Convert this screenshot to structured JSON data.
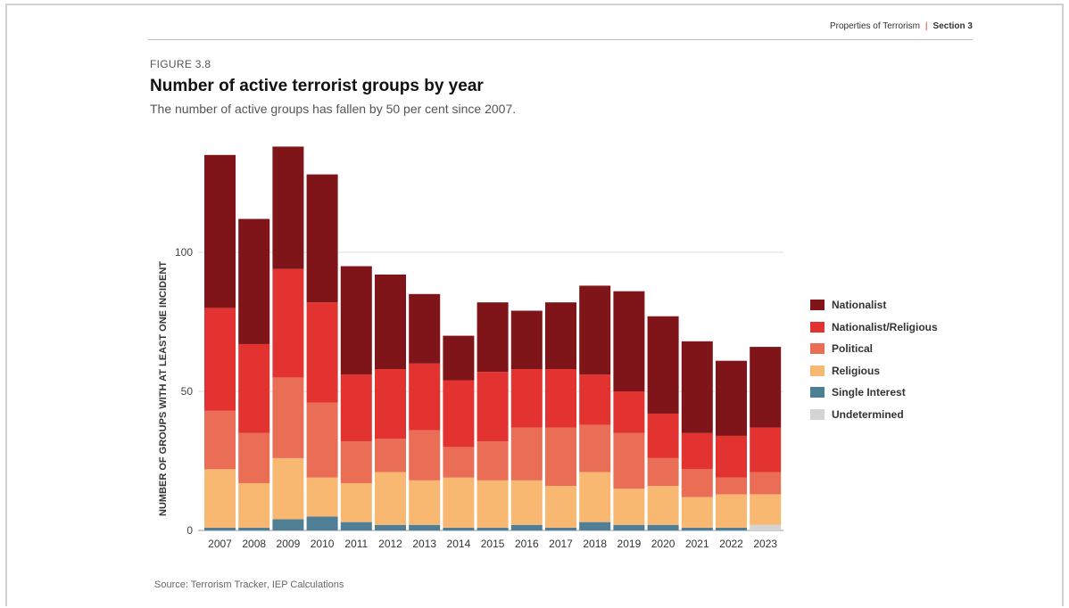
{
  "header": {
    "left": "Properties of Terrorism",
    "separator": "|",
    "right": "Section 3"
  },
  "figure_label": "FIGURE 3.8",
  "source": "Source: Terrorism Tracker, IEP Calculations",
  "chart_data": {
    "type": "bar",
    "stacked": true,
    "title": "Number of active terrorist groups by year",
    "subtitle": "The number of active groups has fallen by 50 per cent since 2007.",
    "ylabel": "NUMBER OF GROUPS WITH AT LEAST ONE INCIDENT",
    "xlabel": "",
    "ylim": [
      0,
      150
    ],
    "yticks": [
      0,
      50,
      100
    ],
    "grid": true,
    "legend_position": "right",
    "categories": [
      "2007",
      "2008",
      "2009",
      "2010",
      "2011",
      "2012",
      "2013",
      "2014",
      "2015",
      "2016",
      "2017",
      "2018",
      "2019",
      "2020",
      "2021",
      "2022",
      "2023"
    ],
    "series": [
      {
        "name": "Undetermined",
        "color": "#d4d4d4",
        "values": [
          0,
          0,
          0,
          0,
          0,
          0,
          0,
          0,
          0,
          0,
          0,
          0,
          0,
          0,
          0,
          0,
          2
        ]
      },
      {
        "name": "Single Interest",
        "color": "#4e7f95",
        "values": [
          1,
          1,
          4,
          5,
          3,
          2,
          2,
          1,
          1,
          2,
          1,
          3,
          2,
          2,
          1,
          1,
          0
        ]
      },
      {
        "name": "Religious",
        "color": "#f8b872",
        "values": [
          21,
          16,
          22,
          14,
          14,
          19,
          16,
          18,
          17,
          16,
          15,
          18,
          13,
          14,
          11,
          12,
          11
        ]
      },
      {
        "name": "Political",
        "color": "#ea6d56",
        "values": [
          21,
          18,
          29,
          27,
          15,
          12,
          18,
          11,
          14,
          19,
          21,
          17,
          20,
          10,
          10,
          6,
          8
        ]
      },
      {
        "name": "Nationalist/Religious",
        "color": "#e23331",
        "values": [
          37,
          32,
          39,
          36,
          24,
          25,
          24,
          24,
          25,
          21,
          21,
          18,
          15,
          16,
          13,
          15,
          16
        ]
      },
      {
        "name": "Nationalist",
        "color": "#7f1519",
        "values": [
          55,
          45,
          44,
          46,
          39,
          34,
          25,
          16,
          25,
          21,
          24,
          32,
          36,
          35,
          33,
          27,
          29
        ]
      }
    ]
  }
}
